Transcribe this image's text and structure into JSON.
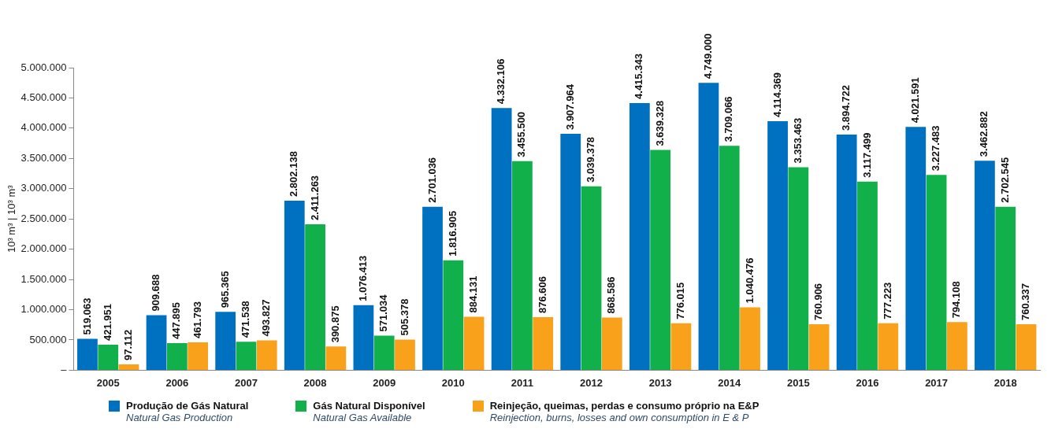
{
  "chart_data": {
    "type": "bar",
    "ylabel": "10³ m³ | 10³ m³",
    "categories": [
      "2005",
      "2006",
      "2007",
      "2008",
      "2009",
      "2010",
      "2011",
      "2012",
      "2013",
      "2014",
      "2015",
      "2016",
      "2017",
      "2018"
    ],
    "series": [
      {
        "name": "Produção de Gás Natural\nNatural Gas Production",
        "color": "#0070c0",
        "values": [
          519063,
          909688,
          965365,
          2802138,
          1076413,
          2701036,
          4332106,
          3907964,
          4415343,
          4749000,
          4114369,
          3894722,
          4021591,
          3462882
        ],
        "value_labels": [
          "519.063",
          "909.688",
          "965.365",
          "2.802.138",
          "1.076.413",
          "2.701.036",
          "4.332.106",
          "3.907.964",
          "4.415.343",
          "4.749.000",
          "4.114.369",
          "3.894.722",
          "4.021.591",
          "3.462.882"
        ]
      },
      {
        "name": "Gás Natural Disponível\nNatural Gas Available",
        "color": "#12b04a",
        "values": [
          421951,
          447895,
          471538,
          2411263,
          571034,
          1816905,
          3455500,
          3039378,
          3639328,
          3709066,
          3353463,
          3117499,
          3227483,
          2702545
        ],
        "value_labels": [
          "421.951",
          "447.895",
          "471.538",
          "2.411.263",
          "571.034",
          "1.816.905",
          "3.455.500",
          "3.039.378",
          "3.639.328",
          "3.709.066",
          "3.353.463",
          "3.117.499",
          "3.227.483",
          "2.702.545"
        ]
      },
      {
        "name": "Reinjeção, queimas, perdas e consumo próprio na E&P\nReinjection, burns, losses and own consumption in E & P",
        "color": "#f9a11b",
        "values": [
          97112,
          461793,
          493827,
          390875,
          505378,
          884131,
          876606,
          868586,
          776015,
          1040476,
          760906,
          777223,
          794108,
          760337
        ],
        "value_labels": [
          "97.112",
          "461.793",
          "493.827",
          "390.875",
          "505.378",
          "884.131",
          "876.606",
          "868.586",
          "776.015",
          "1.040.476",
          "760.906",
          "777.223",
          "794.108",
          "760.337"
        ]
      }
    ],
    "ylim": [
      0,
      5000000
    ],
    "yticks": [
      {
        "value": 0,
        "label": "–"
      },
      {
        "value": 500000,
        "label": "500.000"
      },
      {
        "value": 1000000,
        "label": "1.000.000"
      },
      {
        "value": 1500000,
        "label": "1.500.000"
      },
      {
        "value": 2000000,
        "label": "2.000.000"
      },
      {
        "value": 2500000,
        "label": "2.500.000"
      },
      {
        "value": 3000000,
        "label": "3.000.000"
      },
      {
        "value": 3500000,
        "label": "3.500.000"
      },
      {
        "value": 4000000,
        "label": "4.000.000"
      },
      {
        "value": 4500000,
        "label": "4.500.000"
      },
      {
        "value": 5000000,
        "label": "5.000.000"
      }
    ],
    "grid": false,
    "legend": "bottom"
  }
}
